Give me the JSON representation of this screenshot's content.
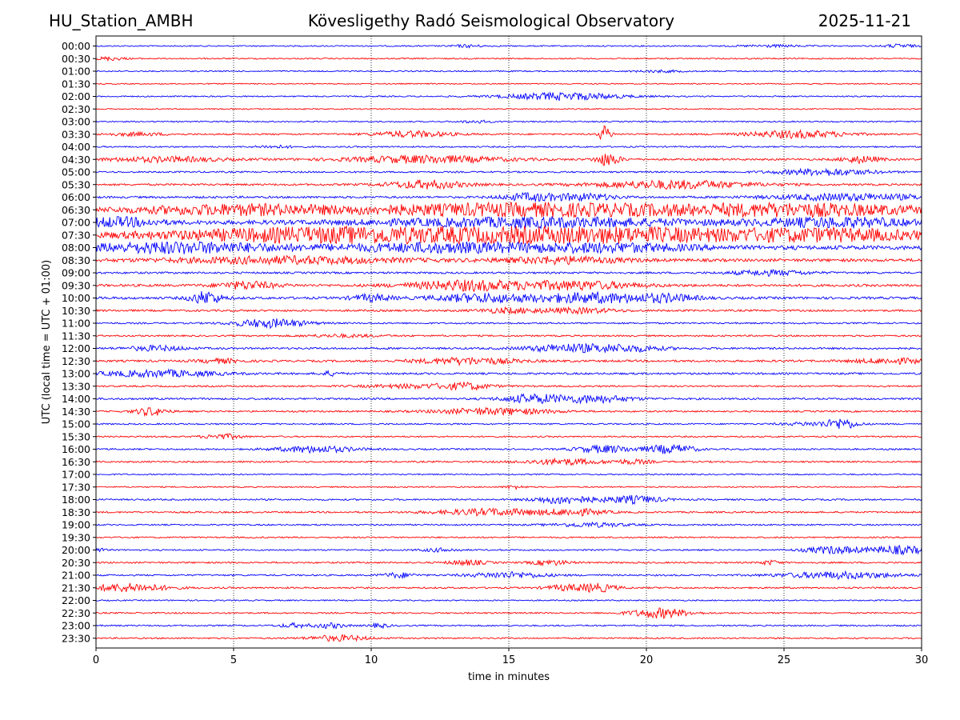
{
  "header": {
    "station": "HU_Station_AMBH",
    "observatory": "Kövesligethy Radó Seismological Observatory",
    "date": "2025-11-21"
  },
  "colors": {
    "odd": "#0000ff",
    "even": "#ff0000",
    "grid": "#000000"
  },
  "chart_data": {
    "type": "line",
    "title": "Kövesligethy Radó Seismological Observatory",
    "xlabel": "time in minutes",
    "ylabel": "UTC (local time = UTC + 01:00)",
    "xlim": [
      0,
      30
    ],
    "xticks": [
      0,
      5,
      10,
      15,
      20,
      25,
      30
    ],
    "grid": "vertical dotted at x ticks",
    "rows": [
      {
        "label": "00:00",
        "color": "blue",
        "noise": 0.8,
        "events": [
          {
            "t": 13.5,
            "a": 1.5,
            "w": 0.8
          },
          {
            "t": 24.5,
            "a": 1.2,
            "w": 1.5
          },
          {
            "t": 29.2,
            "a": 2.0,
            "w": 0.8
          }
        ]
      },
      {
        "label": "00:30",
        "color": "red",
        "noise": 0.8,
        "events": [
          {
            "t": 0.5,
            "a": 2.0,
            "w": 0.8
          }
        ]
      },
      {
        "label": "01:00",
        "color": "blue",
        "noise": 0.8,
        "events": [
          {
            "t": 20.5,
            "a": 1.2,
            "w": 1.2
          }
        ]
      },
      {
        "label": "01:30",
        "color": "red",
        "noise": 0.7,
        "events": []
      },
      {
        "label": "02:00",
        "color": "blue",
        "noise": 0.8,
        "events": [
          {
            "t": 17,
            "a": 4.5,
            "w": 3.0
          }
        ]
      },
      {
        "label": "02:30",
        "color": "red",
        "noise": 0.7,
        "events": []
      },
      {
        "label": "03:00",
        "color": "blue",
        "noise": 0.8,
        "events": [
          {
            "t": 13.8,
            "a": 1.5,
            "w": 0.8
          }
        ]
      },
      {
        "label": "03:30",
        "color": "red",
        "noise": 1.0,
        "events": [
          {
            "t": 1.5,
            "a": 1.8,
            "w": 1.5
          },
          {
            "t": 11.5,
            "a": 3.5,
            "w": 2.0
          },
          {
            "t": 18.5,
            "a": 10.0,
            "w": 0.3
          },
          {
            "t": 25.5,
            "a": 4.5,
            "w": 2.5
          }
        ]
      },
      {
        "label": "04:00",
        "color": "blue",
        "noise": 0.9,
        "events": [
          {
            "t": 6.5,
            "a": 1.5,
            "w": 1.0
          }
        ]
      },
      {
        "label": "04:30",
        "color": "red",
        "noise": 1.2,
        "events": [
          {
            "t": 2.5,
            "a": 3.0,
            "w": 3.0
          },
          {
            "t": 12,
            "a": 4.5,
            "w": 4.0
          },
          {
            "t": 18.6,
            "a": 8.0,
            "w": 0.6
          },
          {
            "t": 27.8,
            "a": 4.0,
            "w": 1.0
          }
        ]
      },
      {
        "label": "05:00",
        "color": "blue",
        "noise": 1.0,
        "events": [
          {
            "t": 26.5,
            "a": 4.0,
            "w": 2.5
          }
        ]
      },
      {
        "label": "05:30",
        "color": "red",
        "noise": 1.2,
        "events": [
          {
            "t": 12,
            "a": 5.0,
            "w": 2.0
          },
          {
            "t": 21,
            "a": 5.0,
            "w": 4.0
          }
        ]
      },
      {
        "label": "06:00",
        "color": "blue",
        "noise": 1.3,
        "events": [
          {
            "t": 15.8,
            "a": 4.5,
            "w": 1.5
          },
          {
            "t": 17.8,
            "a": 4.0,
            "w": 1.5
          },
          {
            "t": 27.5,
            "a": 4.0,
            "w": 4.0
          }
        ]
      },
      {
        "label": "06:30",
        "color": "red",
        "noise": 2.5,
        "events": [
          {
            "t": 5,
            "a": 5.0,
            "w": 5.0
          },
          {
            "t": 16,
            "a": 7.0,
            "w": 10.0
          },
          {
            "t": 26,
            "a": 6.0,
            "w": 6.0
          }
        ]
      },
      {
        "label": "07:00",
        "color": "blue",
        "noise": 2.5,
        "events": [
          {
            "t": 0.8,
            "a": 5.0,
            "w": 2.0
          },
          {
            "t": 16,
            "a": 5.0,
            "w": 8.0
          },
          {
            "t": 27,
            "a": 5.0,
            "w": 4.0
          }
        ]
      },
      {
        "label": "07:30",
        "color": "red",
        "noise": 3.0,
        "events": [
          {
            "t": 8,
            "a": 7.0,
            "w": 8.0
          },
          {
            "t": 18,
            "a": 8.0,
            "w": 10.0
          },
          {
            "t": 27,
            "a": 5.0,
            "w": 5.0
          }
        ]
      },
      {
        "label": "08:00",
        "color": "blue",
        "noise": 2.5,
        "events": [
          {
            "t": 3,
            "a": 6.0,
            "w": 5.0
          },
          {
            "t": 13,
            "a": 5.0,
            "w": 6.0
          },
          {
            "t": 19,
            "a": 4.0,
            "w": 4.0
          }
        ]
      },
      {
        "label": "08:30",
        "color": "red",
        "noise": 1.8,
        "events": [
          {
            "t": 7,
            "a": 4.0,
            "w": 6.0
          },
          {
            "t": 17,
            "a": 4.0,
            "w": 3.0
          }
        ]
      },
      {
        "label": "09:00",
        "color": "blue",
        "noise": 1.2,
        "events": [
          {
            "t": 24.5,
            "a": 3.0,
            "w": 2.0
          }
        ]
      },
      {
        "label": "09:30",
        "color": "red",
        "noise": 1.5,
        "events": [
          {
            "t": 5.5,
            "a": 4.5,
            "w": 1.5
          },
          {
            "t": 13.5,
            "a": 6.0,
            "w": 3.0
          },
          {
            "t": 17.5,
            "a": 5.0,
            "w": 3.0
          }
        ]
      },
      {
        "label": "10:00",
        "color": "blue",
        "noise": 1.5,
        "events": [
          {
            "t": 4,
            "a": 8.0,
            "w": 0.8
          },
          {
            "t": 10,
            "a": 4.0,
            "w": 1.0
          },
          {
            "t": 14,
            "a": 5.0,
            "w": 2.5
          },
          {
            "t": 18,
            "a": 6.0,
            "w": 3.0
          },
          {
            "t": 20.8,
            "a": 4.0,
            "w": 1.5
          }
        ]
      },
      {
        "label": "10:30",
        "color": "red",
        "noise": 1.2,
        "events": [
          {
            "t": 15,
            "a": 3.0,
            "w": 1.5
          },
          {
            "t": 17.5,
            "a": 3.0,
            "w": 2.0
          }
        ]
      },
      {
        "label": "11:00",
        "color": "blue",
        "noise": 1.0,
        "events": [
          {
            "t": 5.8,
            "a": 3.0,
            "w": 1.5
          },
          {
            "t": 6.8,
            "a": 3.5,
            "w": 1.5
          }
        ]
      },
      {
        "label": "11:30",
        "color": "red",
        "noise": 1.0,
        "events": [
          {
            "t": 9,
            "a": 1.5,
            "w": 2.0
          }
        ]
      },
      {
        "label": "12:00",
        "color": "blue",
        "noise": 1.2,
        "events": [
          {
            "t": 2.2,
            "a": 3.0,
            "w": 1.5
          },
          {
            "t": 17,
            "a": 4.5,
            "w": 2.0
          },
          {
            "t": 19.2,
            "a": 4.0,
            "w": 2.0
          }
        ]
      },
      {
        "label": "12:30",
        "color": "red",
        "noise": 1.3,
        "events": [
          {
            "t": 4.5,
            "a": 2.5,
            "w": 1.0
          },
          {
            "t": 13.5,
            "a": 4.0,
            "w": 2.5
          },
          {
            "t": 29,
            "a": 3.0,
            "w": 2.0
          }
        ]
      },
      {
        "label": "13:00",
        "color": "blue",
        "noise": 1.2,
        "events": [
          {
            "t": 2.3,
            "a": 4.0,
            "w": 3.0
          },
          {
            "t": 8.5,
            "a": 2.5,
            "w": 0.5
          }
        ]
      },
      {
        "label": "13:30",
        "color": "red",
        "noise": 1.0,
        "events": [
          {
            "t": 12,
            "a": 2.5,
            "w": 3.0
          },
          {
            "t": 13.5,
            "a": 3.0,
            "w": 1.0
          }
        ]
      },
      {
        "label": "14:00",
        "color": "blue",
        "noise": 1.2,
        "events": [
          {
            "t": 15.8,
            "a": 5.0,
            "w": 1.5
          },
          {
            "t": 18,
            "a": 4.5,
            "w": 2.0
          }
        ]
      },
      {
        "label": "14:30",
        "color": "red",
        "noise": 1.0,
        "events": [
          {
            "t": 2,
            "a": 5.0,
            "w": 0.8
          },
          {
            "t": 14.5,
            "a": 4.0,
            "w": 3.0
          }
        ]
      },
      {
        "label": "15:00",
        "color": "blue",
        "noise": 0.9,
        "events": [
          {
            "t": 27.1,
            "a": 6.0,
            "w": 0.8
          },
          {
            "t": 26,
            "a": 2.0,
            "w": 1.5
          }
        ]
      },
      {
        "label": "15:30",
        "color": "red",
        "noise": 0.9,
        "events": [
          {
            "t": 4.6,
            "a": 3.0,
            "w": 1.0
          }
        ]
      },
      {
        "label": "16:00",
        "color": "blue",
        "noise": 1.0,
        "events": [
          {
            "t": 8,
            "a": 4.0,
            "w": 2.0
          },
          {
            "t": 18.5,
            "a": 4.5,
            "w": 1.5
          },
          {
            "t": 20.5,
            "a": 4.0,
            "w": 0.8
          },
          {
            "t": 21.3,
            "a": 4.0,
            "w": 0.8
          }
        ]
      },
      {
        "label": "16:30",
        "color": "red",
        "noise": 1.0,
        "events": [
          {
            "t": 17,
            "a": 3.5,
            "w": 2.0
          },
          {
            "t": 19.5,
            "a": 2.5,
            "w": 1.0
          }
        ]
      },
      {
        "label": "17:00",
        "color": "blue",
        "noise": 0.8,
        "events": []
      },
      {
        "label": "17:30",
        "color": "red",
        "noise": 0.8,
        "events": [
          {
            "t": 15.2,
            "a": 2.0,
            "w": 0.5
          }
        ]
      },
      {
        "label": "18:00",
        "color": "blue",
        "noise": 1.0,
        "events": [
          {
            "t": 17,
            "a": 5.0,
            "w": 1.5
          },
          {
            "t": 19.5,
            "a": 4.5,
            "w": 1.5
          }
        ]
      },
      {
        "label": "18:30",
        "color": "red",
        "noise": 1.0,
        "events": [
          {
            "t": 14.5,
            "a": 4.0,
            "w": 3.0
          },
          {
            "t": 17.5,
            "a": 3.5,
            "w": 1.5
          }
        ]
      },
      {
        "label": "19:00",
        "color": "blue",
        "noise": 0.9,
        "events": [
          {
            "t": 18,
            "a": 2.5,
            "w": 2.0
          }
        ]
      },
      {
        "label": "19:30",
        "color": "red",
        "noise": 0.9,
        "events": []
      },
      {
        "label": "20:00",
        "color": "blue",
        "noise": 0.9,
        "events": [
          {
            "t": 0.1,
            "a": 2.5,
            "w": 0.3
          },
          {
            "t": 12.5,
            "a": 2.0,
            "w": 1.0
          },
          {
            "t": 26.8,
            "a": 4.5,
            "w": 1.5
          },
          {
            "t": 29.2,
            "a": 5.0,
            "w": 1.5
          }
        ]
      },
      {
        "label": "20:30",
        "color": "red",
        "noise": 1.0,
        "events": [
          {
            "t": 13.5,
            "a": 3.0,
            "w": 1.0
          },
          {
            "t": 16.5,
            "a": 3.0,
            "w": 1.0
          },
          {
            "t": 24.5,
            "a": 2.5,
            "w": 0.5
          }
        ]
      },
      {
        "label": "21:00",
        "color": "blue",
        "noise": 1.0,
        "events": [
          {
            "t": 11,
            "a": 3.0,
            "w": 0.8
          },
          {
            "t": 15,
            "a": 3.5,
            "w": 2.0
          },
          {
            "t": 27,
            "a": 4.0,
            "w": 3.0
          }
        ]
      },
      {
        "label": "21:30",
        "color": "red",
        "noise": 1.0,
        "events": [
          {
            "t": 1.2,
            "a": 5.0,
            "w": 2.0
          },
          {
            "t": 17,
            "a": 3.0,
            "w": 1.0
          },
          {
            "t": 18.2,
            "a": 5.0,
            "w": 1.0
          }
        ]
      },
      {
        "label": "22:00",
        "color": "blue",
        "noise": 0.8,
        "events": []
      },
      {
        "label": "22:30",
        "color": "red",
        "noise": 0.9,
        "events": [
          {
            "t": 20.5,
            "a": 6.0,
            "w": 1.5
          }
        ]
      },
      {
        "label": "23:00",
        "color": "blue",
        "noise": 0.9,
        "events": [
          {
            "t": 7.2,
            "a": 2.5,
            "w": 0.8
          },
          {
            "t": 8.5,
            "a": 3.0,
            "w": 0.8
          },
          {
            "t": 10.3,
            "a": 2.5,
            "w": 0.5
          }
        ]
      },
      {
        "label": "23:30",
        "color": "red",
        "noise": 0.9,
        "events": [
          {
            "t": 8.8,
            "a": 3.5,
            "w": 1.5
          }
        ]
      }
    ]
  }
}
